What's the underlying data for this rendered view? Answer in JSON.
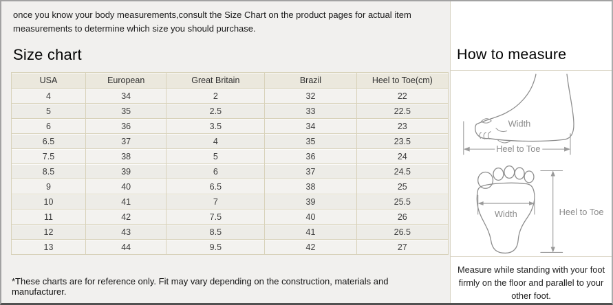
{
  "intro": {
    "text": "once you know your body measurements,consult the Size Chart on the product pages for actual item measurements to determine which size you should purchase."
  },
  "size_chart": {
    "title": "Size chart",
    "columns": [
      "USA",
      "European",
      "Great Britain",
      "Brazil",
      "Heel to Toe(cm)"
    ],
    "rows": [
      [
        "4",
        "34",
        "2",
        "32",
        "22"
      ],
      [
        "5",
        "35",
        "2.5",
        "33",
        "22.5"
      ],
      [
        "6",
        "36",
        "3.5",
        "34",
        "23"
      ],
      [
        "6.5",
        "37",
        "4",
        "35",
        "23.5"
      ],
      [
        "7.5",
        "38",
        "5",
        "36",
        "24"
      ],
      [
        "8.5",
        "39",
        "6",
        "37",
        "24.5"
      ],
      [
        "9",
        "40",
        "6.5",
        "38",
        "25"
      ],
      [
        "10",
        "41",
        "7",
        "39",
        "25.5"
      ],
      [
        "11",
        "42",
        "7.5",
        "40",
        "26"
      ],
      [
        "12",
        "43",
        "8.5",
        "41",
        "26.5"
      ],
      [
        "13",
        "44",
        "9.5",
        "42",
        "27"
      ]
    ],
    "footnote": "*These charts are for reference only. Fit may vary depending on the construction, materials and manufacturer."
  },
  "how_to_measure": {
    "title": "How to measure",
    "side_view": {
      "width_label": "Width",
      "length_label": "Heel to Toe"
    },
    "footprint_view": {
      "width_label": "Width",
      "length_label": "Heel to Toe"
    },
    "caption": "Measure while standing with your foot firmly on the floor and parallel to your other foot."
  },
  "colors": {
    "left_panel_bg": "#f1f0ee",
    "right_panel_bg": "#ffffff",
    "table_border": "#d8d2ba",
    "table_header_bg": "#ebe8dd",
    "outer_border": "#a2a2a2",
    "bottom_border": "#515151",
    "diagram_stroke": "#8d8d8d"
  }
}
